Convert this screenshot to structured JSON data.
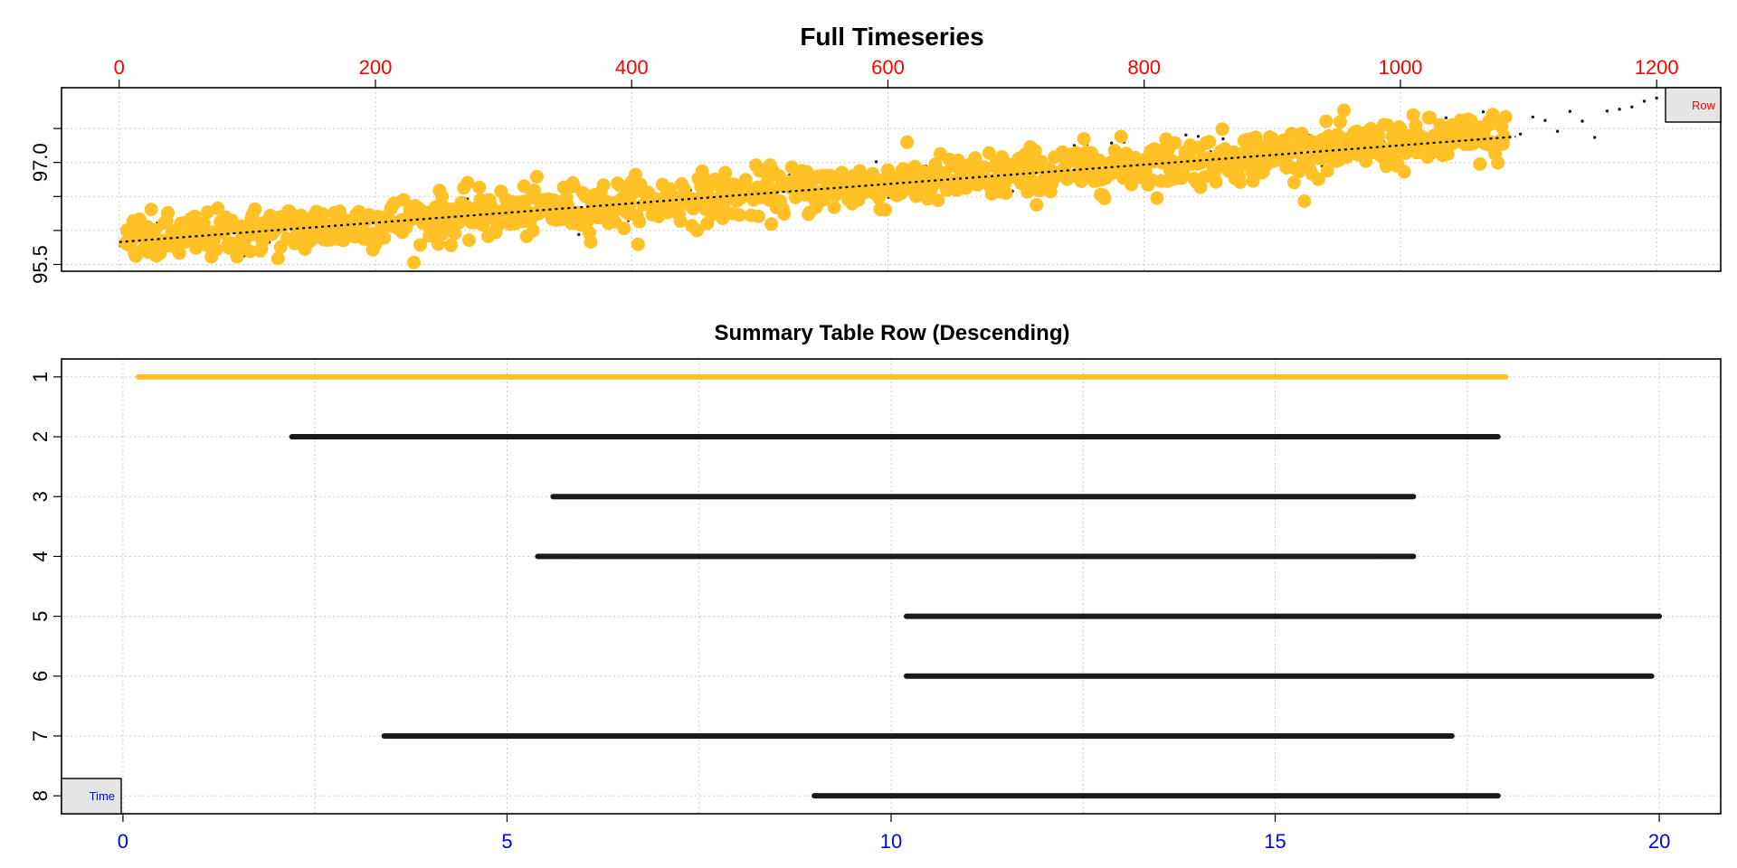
{
  "colors": {
    "highlight": "#FFC125",
    "dark": "#1a1a1a",
    "top_axis": "#ff0000",
    "bottom_axis": "#0000ff",
    "box_fill": "#e5e5e5"
  },
  "chart_data": [
    {
      "type": "scatter",
      "title": "Full Timeseries",
      "xlabel": "",
      "ylabel": "",
      "xlim": [
        -45,
        1250
      ],
      "ylim": [
        95.4,
        98.1
      ],
      "x_ticks": [
        0,
        200,
        400,
        600,
        800,
        1000,
        1200
      ],
      "x_tick_labels": [
        "0",
        "200",
        "400",
        "600",
        "800",
        "1000",
        "1200"
      ],
      "y_ticks": [
        95.5,
        97.0
      ],
      "y_tick_labels": [
        "95.5",
        "97.0"
      ],
      "y_minor_ticks": [
        96.0,
        96.5,
        97.5
      ],
      "grid": true,
      "series": [
        {
          "role": "highlighted",
          "x_range": [
            5,
            1082
          ],
          "trend": [
            95.83,
            97.38
          ],
          "noise_sd": 0.18,
          "n": 1078
        },
        {
          "role": "remaining",
          "x_range": [
            1,
            1200
          ],
          "trend": [
            95.83,
            97.7
          ],
          "noise_sd": 0.17,
          "n": 125
        }
      ],
      "trend_line": {
        "x": [
          0,
          1090
        ],
        "y": [
          95.83,
          97.38
        ]
      },
      "corner_box_label": "Row",
      "corner_box_position": "top-right"
    },
    {
      "type": "range",
      "title": "Summary Table Row (Descending)",
      "xlabel": "",
      "ylabel": "",
      "xlim": [
        -0.8,
        20.8
      ],
      "ylim": [
        8.3,
        0.7
      ],
      "x_ticks": [
        0,
        5,
        10,
        15,
        20
      ],
      "x_tick_labels": [
        "0",
        "5",
        "10",
        "15",
        "20"
      ],
      "y_ticks": [
        1,
        2,
        3,
        4,
        5,
        6,
        7,
        8
      ],
      "y_tick_labels": [
        "1",
        "2",
        "3",
        "4",
        "5",
        "6",
        "7",
        "8"
      ],
      "grid": true,
      "rows": [
        {
          "row": 1,
          "start": 0.2,
          "end": 18.0,
          "highlight": true
        },
        {
          "row": 2,
          "start": 2.2,
          "end": 17.9,
          "highlight": false
        },
        {
          "row": 3,
          "start": 5.6,
          "end": 16.8,
          "highlight": false
        },
        {
          "row": 4,
          "start": 5.4,
          "end": 16.8,
          "highlight": false
        },
        {
          "row": 5,
          "start": 10.2,
          "end": 20.0,
          "highlight": false
        },
        {
          "row": 6,
          "start": 10.2,
          "end": 19.9,
          "highlight": false
        },
        {
          "row": 7,
          "start": 3.4,
          "end": 17.3,
          "highlight": false
        },
        {
          "row": 8,
          "start": 9.0,
          "end": 17.9,
          "highlight": false
        }
      ],
      "corner_box_label": "Time",
      "corner_box_position": "bottom-left"
    }
  ]
}
